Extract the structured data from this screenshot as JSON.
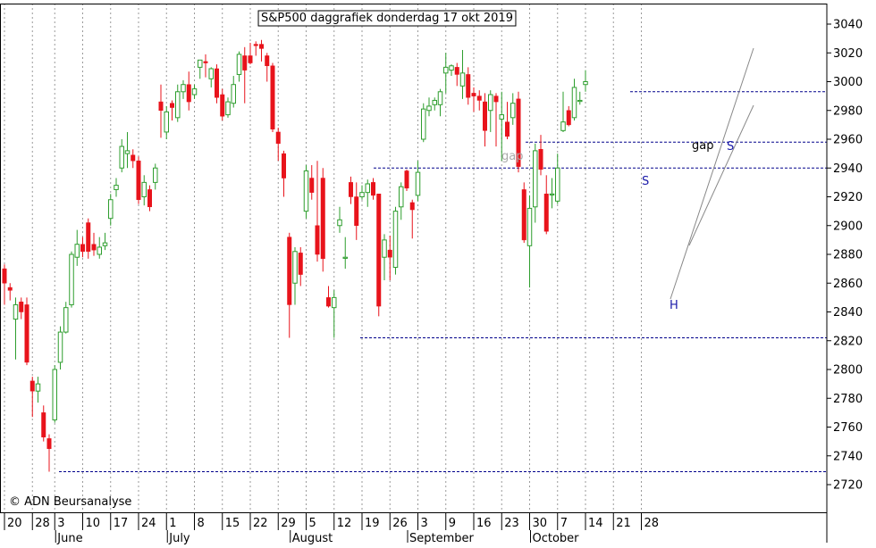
{
  "chart_data": {
    "type": "candlestick",
    "title": "S&P500 daggrafiek donderdag 17 okt 2019",
    "copyright": "© ADN Beursanalyse",
    "y_range": [
      2710,
      3045
    ],
    "y_ticks": [
      2720,
      2740,
      2760,
      2780,
      2800,
      2820,
      2840,
      2860,
      2880,
      2900,
      2920,
      2940,
      2960,
      2980,
      3000,
      3020,
      3040
    ],
    "x_day_labels": [
      "20",
      "28",
      "3",
      "10",
      "17",
      "24",
      "1",
      "8",
      "15",
      "22",
      "29",
      "5",
      "12",
      "19",
      "26",
      "3",
      "9",
      "16",
      "23",
      "30",
      "7",
      "14",
      "21",
      "28"
    ],
    "x_month_labels": [
      "June",
      "July",
      "August",
      "September",
      "October"
    ],
    "colors": {
      "up": "#2e9e2e",
      "down": "#e8131b",
      "reference": "#00008b",
      "grid": "#9a9a9a"
    },
    "horizontal_lines": [
      2729,
      2822,
      2940,
      2958,
      2993
    ],
    "annotations": [
      "gap",
      "gap",
      "S",
      "H",
      "S"
    ],
    "candles": [
      [
        2870,
        2860,
        2845,
        2873
      ],
      [
        2857,
        2855,
        2848,
        2860
      ],
      [
        2835,
        2845,
        2807,
        2850
      ],
      [
        2847,
        2840,
        2835,
        2850
      ],
      [
        2845,
        2805,
        2803,
        2850
      ],
      [
        2792,
        2785,
        2767,
        2795
      ],
      [
        2785,
        2790,
        2777,
        2795
      ],
      [
        2770,
        2753,
        2750,
        2775
      ],
      [
        2752,
        2745,
        2729,
        2755
      ],
      [
        2765,
        2800,
        2763,
        2803
      ],
      [
        2805,
        2826,
        2800,
        2830
      ],
      [
        2826,
        2843,
        2825,
        2847
      ],
      [
        2845,
        2880,
        2843,
        2882
      ],
      [
        2878,
        2887,
        2872,
        2897
      ],
      [
        2887,
        2882,
        2878,
        2892
      ],
      [
        2902,
        2882,
        2877,
        2905
      ],
      [
        2887,
        2883,
        2879,
        2895
      ],
      [
        2880,
        2885,
        2877,
        2892
      ],
      [
        2886,
        2888,
        2883,
        2895
      ],
      [
        2905,
        2918,
        2900,
        2922
      ],
      [
        2925,
        2928,
        2920,
        2933
      ],
      [
        2940,
        2955,
        2937,
        2960
      ],
      [
        2950,
        2952,
        2940,
        2965
      ],
      [
        2949,
        2945,
        2940,
        2953
      ],
      [
        2945,
        2918,
        2915,
        2948
      ],
      [
        2920,
        2930,
        2914,
        2935
      ],
      [
        2925,
        2913,
        2910,
        2928
      ],
      [
        2930,
        2940,
        2925,
        2943
      ],
      [
        2986,
        2980,
        2961,
        2998
      ],
      [
        2965,
        2979,
        2960,
        2983
      ],
      [
        2985,
        2982,
        2973,
        2987
      ],
      [
        2975,
        2993,
        2972,
        2998
      ],
      [
        2993,
        2998,
        2988,
        3001
      ],
      [
        2998,
        2986,
        2980,
        3007
      ],
      [
        2991,
        2995,
        2988,
        2998
      ],
      [
        3010,
        3015,
        3002,
        3015
      ],
      [
        3014,
        3013,
        3003,
        3019
      ],
      [
        3002,
        3009,
        2996,
        3010
      ],
      [
        3009,
        2989,
        2985,
        3012
      ],
      [
        2991,
        2976,
        2973,
        2995
      ],
      [
        2977,
        2986,
        2975,
        2989
      ],
      [
        2985,
        2998,
        2982,
        3004
      ],
      [
        3005,
        3019,
        3000,
        3021
      ],
      [
        3018,
        3008,
        2985,
        3024
      ],
      [
        3018,
        3013,
        3012,
        3027
      ],
      [
        3026,
        3025,
        3018,
        3028
      ],
      [
        3026,
        3023,
        3014,
        3029
      ],
      [
        3018,
        3011,
        3000,
        3020
      ],
      [
        3011,
        2967,
        2965,
        3013
      ],
      [
        2965,
        2957,
        2945,
        2968
      ],
      [
        2950,
        2933,
        2920,
        2952
      ],
      [
        2892,
        2845,
        2822,
        2895
      ],
      [
        2860,
        2882,
        2845,
        2885
      ],
      [
        2881,
        2866,
        2858,
        2885
      ],
      [
        2910,
        2938,
        2905,
        2942
      ],
      [
        2933,
        2923,
        2918,
        2942
      ],
      [
        2900,
        2880,
        2875,
        2945
      ],
      [
        2933,
        2877,
        2868,
        2940
      ],
      [
        2850,
        2844,
        2843,
        2858
      ],
      [
        2843,
        2850,
        2822,
        2855
      ],
      [
        2900,
        2904,
        2895,
        2913
      ],
      [
        2878,
        2878,
        2870,
        2892
      ],
      [
        2930,
        2920,
        2915,
        2934
      ],
      [
        2920,
        2900,
        2890,
        2930
      ],
      [
        2920,
        2923,
        2918,
        2928
      ],
      [
        2923,
        2929,
        2913,
        2932
      ],
      [
        2930,
        2921,
        2918,
        2933
      ],
      [
        2922,
        2844,
        2837,
        2922
      ],
      [
        2878,
        2890,
        2862,
        2894
      ],
      [
        2883,
        2878,
        2862,
        2893
      ],
      [
        2871,
        2910,
        2866,
        2913
      ],
      [
        2913,
        2927,
        2904,
        2930
      ],
      [
        2938,
        2926,
        2924,
        2939
      ],
      [
        2916,
        2911,
        2891,
        2918
      ],
      [
        2921,
        2937,
        2917,
        2945
      ],
      [
        2960,
        2981,
        2958,
        2985
      ],
      [
        2980,
        2983,
        2976,
        2989
      ],
      [
        2984,
        2987,
        2980,
        2989
      ],
      [
        2984,
        2993,
        2976,
        2995
      ],
      [
        3006,
        3010,
        2992,
        3020
      ],
      [
        3008,
        3011,
        3004,
        3012
      ],
      [
        3010,
        3005,
        2997,
        3013
      ],
      [
        2997,
        3006,
        2988,
        3022
      ],
      [
        3005,
        2989,
        2984,
        3010
      ],
      [
        2992,
        2990,
        2979,
        2996
      ],
      [
        2990,
        2987,
        2980,
        2994
      ],
      [
        2986,
        2966,
        2955,
        2992
      ],
      [
        2980,
        2991,
        2965,
        2994
      ],
      [
        2990,
        2986,
        2955,
        2992
      ],
      [
        2974,
        2977,
        2945,
        2993
      ],
      [
        2972,
        2962,
        2960,
        2986
      ],
      [
        2975,
        2985,
        2970,
        2992
      ],
      [
        2988,
        2941,
        2937,
        2993
      ],
      [
        2925,
        2890,
        2888,
        2930
      ],
      [
        2886,
        2912,
        2857,
        2921
      ],
      [
        2913,
        2952,
        2902,
        2957
      ],
      [
        2953,
        2939,
        2935,
        2963
      ],
      [
        2922,
        2896,
        2894,
        2935
      ],
      [
        2922,
        2922,
        2912,
        2933
      ],
      [
        2917,
        2940,
        2915,
        2950
      ],
      [
        2966,
        2972,
        2965,
        2993
      ],
      [
        2980,
        2970,
        2969,
        2983
      ],
      [
        2975,
        2996,
        2973,
        3002
      ],
      [
        2987,
        2987,
        2984,
        2993
      ],
      [
        2998,
        3000,
        2993,
        3008
      ]
    ],
    "x_axis": {
      "label_slot_indices": [
        0,
        5,
        9,
        14,
        19,
        24,
        29,
        34,
        39,
        44,
        49,
        54,
        59,
        64,
        69,
        74,
        79,
        84,
        89,
        94,
        99,
        104,
        109,
        114
      ],
      "month_slot_indices": [
        9,
        29,
        51,
        72,
        94
      ]
    }
  }
}
